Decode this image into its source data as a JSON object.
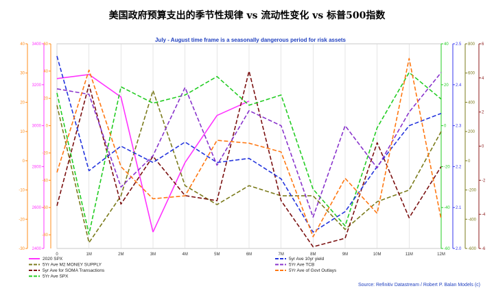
{
  "chart_data": {
    "type": "line",
    "title": "美国政府预算支出的季节性规律 vs 流动性变化 vs 标普500指数",
    "subtitle": "July - August time frame is a seasonally dangerous period for risk assets",
    "source": "Source: Refinitiv Datastream / Robert P. Balan Models (c)",
    "categories": [
      "0",
      "1M",
      "2M",
      "3M",
      "4M",
      "5M",
      "6M",
      "7M",
      "8M",
      "9M",
      "10M",
      "11M",
      "12M"
    ],
    "grid": "vertical",
    "legend_position": "bottom",
    "axes": {
      "outer_left": {
        "color": "#ff8c1a",
        "min": -30,
        "max": 40,
        "ticks": [
          "40",
          "30",
          "20",
          "10",
          "0",
          "-10",
          "-20",
          "-30"
        ]
      },
      "inner_left": {
        "color": "#ff33ff",
        "min": 2400,
        "max": 3400,
        "ticks": [
          "3400",
          "3200",
          "3000",
          "2800",
          "2600",
          "2400"
        ]
      },
      "middle_left": {
        "color": "#ff8c1a",
        "min": -90,
        "max": 60,
        "ticks": [
          "60",
          "40",
          "20",
          "0",
          "-20",
          "-40",
          "-60",
          "-80"
        ]
      },
      "right_1": {
        "color": "#22cc22",
        "min": -60,
        "max": 40,
        "ticks": [
          "40",
          "20",
          "0",
          "-20",
          "-40",
          "-60"
        ]
      },
      "right_2": {
        "color": "#3333ee",
        "min": 2.0,
        "max": 2.5,
        "ticks": [
          "2.5",
          "2.4",
          "2.3",
          "2.2",
          "2.1",
          "2.0"
        ]
      },
      "right_3": {
        "color": "#7a7a1a",
        "min": -600,
        "max": 800,
        "ticks": [
          "800",
          "600",
          "400",
          "200",
          "0",
          "-200",
          "-400",
          "-600"
        ]
      },
      "right_4": {
        "color": "#8b1a1a",
        "min": -6,
        "max": 6,
        "ticks": [
          "6",
          "4",
          "2",
          "0",
          "-2",
          "-4",
          "-6"
        ]
      }
    },
    "series": [
      {
        "name": "2020 SPX",
        "color": "#ff33ff",
        "dash": "solid",
        "axis": "inner_left",
        "values": [
          3230,
          3250,
          3140,
          2480,
          null,
          null,
          null,
          null,
          null,
          null,
          null,
          null,
          null
        ]
      },
      {
        "name": "2020 SPX",
        "color": "#ff33ff",
        "dash": "solid",
        "axis": "inner_left",
        "values": [
          null,
          null,
          null,
          2480,
          2820,
          3050,
          3120,
          null,
          null,
          null,
          null,
          null,
          null
        ],
        "legend": false
      },
      {
        "name": "5Yr Ave M2 MONEY SUPPLY",
        "color": "#7a7a1a",
        "dash": "dash",
        "axis": "right_3",
        "values": [
          380,
          -560,
          -240,
          480,
          -170,
          -300,
          -170,
          -240,
          -240,
          -470,
          -280,
          -200,
          200
        ]
      },
      {
        "name": "5yr Ave for SOMA Transactions",
        "color": "#7a0f0f",
        "dash": "dash",
        "axis": "right_4",
        "values": [
          -3.5,
          3.6,
          -3.4,
          -0.6,
          -2.9,
          -3.2,
          4.4,
          -3.2,
          -5.9,
          -5.4,
          0.2,
          -4.2,
          -1.2
        ]
      },
      {
        "name": "5Yr Ave SPX",
        "color": "#22cc22",
        "dash": "dash",
        "axis": "right_1",
        "values": [
          16,
          -53,
          19,
          11,
          15,
          24,
          10,
          15,
          -31,
          -49,
          -1,
          26,
          13
        ]
      },
      {
        "name": "5yr Ave 10yr yield",
        "color": "#2233dd",
        "dash": "dash",
        "axis": "right_2",
        "values": [
          2.47,
          2.19,
          2.25,
          2.21,
          2.26,
          2.21,
          2.22,
          2.17,
          2.04,
          2.09,
          2.2,
          2.3,
          2.33
        ]
      },
      {
        "name": "5Yr Ave TCB",
        "color": "#8833cc",
        "dash": "dash",
        "axis": "middle_left",
        "values": [
          27,
          23,
          -45,
          -22,
          28,
          -29,
          11,
          0,
          -67,
          0,
          -31,
          10,
          39
        ]
      },
      {
        "name": "5Yr Ave of Govt Outlays",
        "color": "#ff7711",
        "dash": "dash",
        "axis": "outer_left",
        "values": [
          -4,
          31,
          -2,
          -13,
          -12,
          7,
          6,
          3,
          -26,
          -6,
          -18,
          35,
          -20
        ]
      }
    ]
  }
}
